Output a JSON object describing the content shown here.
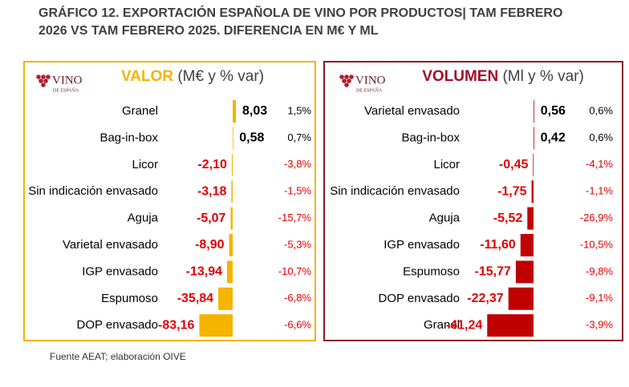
{
  "title": [
    "GRÁFICO 12. EXPORTACIÓN ESPAÑOLA DE VINO POR PRODUCTOS| TAM FEBRERO",
    "2026 VS TAM FEBRERO 2025. DIFERENCIA EN M€ Y ML"
  ],
  "source": "Fuente AEAT; elaboración OIVE",
  "logo": {
    "main": "VINO",
    "sub": "DE ESPAÑA"
  },
  "chart_data": [
    {
      "type": "bar",
      "orientation": "horizontal",
      "title": "VALOR",
      "subtitle": "(M€ y % var)",
      "title_color": "#f5b400",
      "border_color": "#f5b400",
      "color": "#f5b400",
      "categories": [
        "Granel",
        "Bag-in-box",
        "Licor",
        "Sin indicación envasado",
        "Aguja",
        "Varietal envasado",
        "IGP envasado",
        "Espumoso",
        "DOP envasado"
      ],
      "values": [
        8.03,
        0.58,
        -2.1,
        -3.18,
        -5.07,
        -8.9,
        -13.94,
        -35.84,
        -83.16
      ],
      "value_labels": [
        "8,03",
        "0,58",
        "-2,10",
        "-3,18",
        "-5,07",
        "-8,90",
        "-13,94",
        "-35,84",
        "-83,16"
      ],
      "pct_change": {
        "values": [
          1.5,
          0.7,
          -3.8,
          -1.5,
          -15.7,
          -5.3,
          -10.7,
          -6.8,
          -6.6
        ],
        "value_labels": [
          "1,5%",
          "0,7%",
          "-3,8%",
          "-1,5%",
          "-15,7%",
          "-5,3%",
          "-10,7%",
          "-6,8%",
          "-6,6%"
        ]
      },
      "xlim": [
        -90,
        10
      ]
    },
    {
      "type": "bar",
      "orientation": "horizontal",
      "title": "VOLUMEN",
      "subtitle": "(Ml y % var)",
      "title_color": "#a0102a",
      "border_color": "#8b1a2b",
      "color": "#c00000",
      "categories": [
        "Varietal envasado",
        "Bag-in-box",
        "Licor",
        "Sin indicación envasado",
        "Aguja",
        "IGP envasado",
        "Espumoso",
        "DOP envasado",
        "Granel"
      ],
      "values": [
        0.56,
        0.42,
        -0.45,
        -1.75,
        -5.52,
        -11.6,
        -15.77,
        -22.37,
        -41.24
      ],
      "value_labels": [
        "0,56",
        "0,42",
        "-0,45",
        "-1,75",
        "-5,52",
        "-11,60",
        "-15,77",
        "-22,37",
        "-41,24"
      ],
      "pct_change": {
        "values": [
          0.6,
          0.6,
          -4.1,
          -1.1,
          -26.9,
          -10.5,
          -9.8,
          -9.1,
          -3.9
        ],
        "value_labels": [
          "0,6%",
          "0,6%",
          "-4,1%",
          "-1,1%",
          "-26,9%",
          "-10,5%",
          "-9,8%",
          "-9,1%",
          "-3,9%"
        ]
      },
      "xlim": [
        -45,
        5
      ]
    }
  ]
}
